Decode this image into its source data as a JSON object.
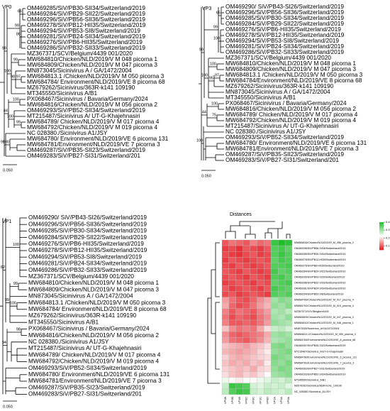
{
  "trees": [
    {
      "label": "VP0",
      "scale": "0.050",
      "leaves": [
        "OM469285/SiV/PB30-SII34/Switzerland/2019",
        "OM469284/SiV/PB29-SII22/Switzerland/2019",
        "OM469296/SiV/PB56-SII36/Switzerland/2019",
        "OM469278/SiV/PB12-HII35/Switzerland/2019",
        "OM469294/SiV/PB53-SI8/Switzerland/2019",
        "OM469281/SiV/PB24-SII34/Switzerland/2019",
        "OM469276/SiV/PB6-HII35/Switzerland/2019",
        "OM469286/SiV/PB32-SII33/Switzerland/2019",
        "MZ367371/SCV/Belgium/4439 001/2020",
        "MW684810/Chicken/NLD/2019/V M 048 picorna 1",
        "MW684809/Chicken/NLD/2019/V M 047 picorna 3",
        "MN873045/Sicinivirus A / GA/1472/2004",
        "MW684813.1 /Chicken/NLD/2019/V M 050 picorna 3",
        "MW684784/ Environment/NLD/2019/VE 8 picorna 68",
        "MZ679262/Sicinivirus/363R-k141 109190",
        "MT345550/Sicinivirus A/B1",
        {
          "label": "PX068467/Sicinivirus / Bavaria/Germany/2024",
          "color": "#e8141c"
        },
        {
          "label": "MW684816/Chicken/NLD/2019/V M 056 picorna 2",
          "color": "#1a2ee0"
        },
        "OM469293/SiV/PB52-SII34/Switzerland/2019",
        "MT215487/Sicinivirus A/ UT-G-Khajehnasiri",
        "MW684789/ Chicken/NLD/2019/V M 017 picorna 4",
        "MW684792/Chicken/NLD/2019/V M 019 picorna 4",
        "NC 028380./Sicinivirus A1/JSY",
        "MW684780/ Environment/NLD/2019/VE 6 picorna 131",
        "MW684781/Environment/NLD/2019/VE 7 picorna 3",
        "OM469287/SiV/PB35-SII23/Switzerland/2019",
        "OM469283/SiV/PB27-SI31/Switzerland/201"
      ],
      "bootstrap": [
        "99",
        "99",
        "66",
        "86",
        "100",
        "99",
        "98",
        "97",
        "100",
        "44",
        "100",
        "99",
        "99",
        "100"
      ]
    },
    {
      "label": "VP3",
      "scale": "0.050",
      "leaves": [
        "OM469290/ SiV/PB43-SI26/Switzerland/2019",
        "OM469296/SiV/PB56-SII36/Switzerland/2019",
        "OM469285/SiV/PB30-SII34/Switzerland/2019",
        "OM469284/SiV/PB29-SII22/Switzerland/2019",
        "OM469276/SiV/PB6-HII35/Switzerland/2019",
        "OM469278/SiV/PB12-HII35/Switzerland/2019",
        "OM469294/SiV/PB53-SI8/Switzerland/2019",
        "OM469281/SiV/PB24-SII34/Switzerland/2019",
        "OM469286/SiV/PB32-SII33/Switzerland/2019",
        "MZ367371/SCV/Belgium/4439 001/2020",
        "MW684810/Chicken/NLD/2019/V M 048 picorna 1",
        "MW684809/Chicken/NLD/2019/V M 047 picorna 3",
        "MW684813.1 /Chicken/NLD/2019/V M 050 picorna 3",
        "MW684784/Environment/NLD/2019/VE 8 picorna 68",
        "MZ679262/Sicinivirus/363R-k141 109190",
        "MN873045/Sicinivirus A / GA/1472/2004",
        "MT345550/Sicinivirus A/B1",
        {
          "label": "PX068467/Sicinivirus / Bavaria/Germany/2024",
          "color": "#e8141c"
        },
        {
          "label": "MW684816/Chicken/NLD/2019/V M 056 picorna 2",
          "color": "#1a2ee0"
        },
        "MW684789/ Chicken/NLD/2019/V M 017 picorna 4",
        "MW684792/Chicken/NLD/2019/V M 019 picorna 4",
        "MT215487/Sicinivirus A/ UT-G-Khajehnasiri",
        "NC 028380./Sicinivirus A1/JSY",
        "OM469293/SiV/PB52-SII34/Switzerland/2019",
        "MW684780/ Environment/NLD/2019/VE 6 picorna 131",
        "MW684781/Environment/NLD/2019/VE 7 picorna 3",
        "OM469287/SiV/PB35-SII23/Switzerland/2019",
        "OM469283/SiV/PB27-SI31/Switzerland/201"
      ],
      "bootstrap": [
        "99",
        "99",
        "65",
        "100",
        "100",
        "100",
        "95",
        "97",
        "44",
        "100",
        "75",
        "100"
      ]
    },
    {
      "label": "VP1",
      "scale": "0.050",
      "leaves": [
        "OM469290/ SiV/PB43-SI26/Switzerland/2019",
        "OM469296/SiV/PB56-SII36/Switzerland/2019",
        "OM469285/SiV/PB30-SII34/Switzerland/2019",
        "OM469284/SiV/PB29-SII22/Switzerland/2019",
        "OM469276/SiV/PB6-HII35/Switzerland/2019",
        "OM469278/SiV/PB12-HII35/Switzerland/2019",
        "OM469294/SiV/PB53-SI8/Switzerland/2019",
        "OM469281/SiV/PB24-SII34/Switzerland/2019",
        "OM469286/SiV/PB32-SII33/Switzerland/2019",
        "MZ367371/SCV/Belgium/4439 001/2020",
        "MW684810/Chicken/NLD/2019/V M 048 picorna 1",
        "MW684809/Chicken/NLD/2019/V M 047 picorna 3",
        "MN873045/Sicinivirus A / GA/1472/2004",
        "MW684813.1 /Chicken/NLD/2019/V M 050 picorna 3",
        "MW684784/ Environment/NLD/2019/VE 8 picorna 68",
        "MZ679262/Sicinivirus/363R-k141 109190",
        "MT345550/Sicinivirus A/B1",
        {
          "label": "PX068467/Sicinivirus / Bavaria/Germany/2024",
          "color": "#e8141c"
        },
        {
          "label": "MW684816/Chicken/NLD/2019/V M 056 picorna 2",
          "color": "#1a2ee0"
        },
        "NC 028380./Sicinivirus A1/JSY",
        "MT215487/Sicinivirus A/ UT-G-Khajehnasiri",
        "MW684789/ Chicken/NLD/2019/V M 017 picorna 4",
        "MW684792/Chicken/NLD/2019/V M 019 picorna 4",
        "OM469293/SiV/PB52-SII34/Switzerland/2019",
        "MW684780/ Environment/NLD/2019/VE 6 picorna 131",
        "MW684781/Environment/NLD/2019/VE 7 picorna 3",
        "OM469287/SiV/PB35-SI23/Switzerland/2019",
        "OM469283/SiV/PB27-SI31/Switzerland/201"
      ],
      "bootstrap": [
        "62",
        "100",
        "99",
        "99",
        "100",
        "94",
        "98"
      ]
    }
  ],
  "heatmap": {
    "title": "Distances",
    "rows": [
      "MW684816/Chicken/NLD/2019/V_M_056_picorna_2",
      "OM469296/SiV/PB56-SII36/Switzerland/2019",
      "OM469285/SiV/PB30-SII34/Switzerland/2019",
      "OM469278/SiV/PB12-HII35/Switzerland/2019",
      "OM469276/SiV/PB6-HII35/Switzerland/2019",
      "OM469284/SiV/PB29-SII22/Switzerland/2019",
      "OM469290/SiV/PB43-SI26/Switzerland/2019",
      "OM469286/SiV/PB32-SII33/Switzerland/2019",
      "OM469281/SiV/PB24-SII34/Switzerland/2019",
      "OM469294/SiV/PB53-SI8/Switzerland/2019",
      "MW684789/Chicken/NLD/2019/V_M_017_picorna_4",
      "MW684792/Chicken/NLD/2019/V_M_019_picorna_4",
      "MZ367371/SCV/Belgium/4439",
      "MW684809/Chicken/NLD/2019/V_M_047_picorna_3",
      "MW684810/Chicken/NLD/2019/V_M_048_picorna_1",
      "MN873045/Sicinivirus_A/GA/1472/2004",
      "MW684813.1/Chicken/NLD/2019/V_M_050_picorna_3",
      "MW684784/Environment/NLD/2019/VE_8_picorna_68",
      "OM469287/SiV/PB35-SII23/Switzerland/2019",
      "MT215487/Sicinivirus_A/UT-G-Khajehnasiri",
      "MW684780/Environment/NLD/2019/VE_6_picorna_131",
      "MW684781/Environment/NLD/2019/VE_7_picorna_3",
      "OM469283/SiV/PB27-SI31/Switzerland/2019",
      "OM469293/SiV/PB52-SII34/Switzerland/2019",
      "MT345550/Sicinivirus_A/B1",
      "MZ679262/Sicinivirus/363R-k141_109190",
      "NC_028380./Sicinivirus_A1/JSY"
    ],
    "columns": [
      "VP0B",
      "VP3B",
      "VP1B",
      "VP0C",
      "VP3C",
      "VP1C",
      "VP0D",
      "VP1A",
      "VP3A",
      "VP0A"
    ],
    "values": [
      [
        0.1,
        0.12,
        0.11,
        0.1,
        0.13,
        0.11,
        0.12,
        0.38,
        0.4,
        0.39
      ],
      [
        0.08,
        0.09,
        0.07,
        0.1,
        0.09,
        0.08,
        0.1,
        0.36,
        0.37,
        0.35
      ],
      [
        0.09,
        0.08,
        0.07,
        0.09,
        0.1,
        0.08,
        0.09,
        0.36,
        0.38,
        0.36
      ],
      [
        0.08,
        0.1,
        0.09,
        0.08,
        0.09,
        0.1,
        0.09,
        0.35,
        0.37,
        0.36
      ],
      [
        0.09,
        0.08,
        0.1,
        0.09,
        0.08,
        0.09,
        0.1,
        0.36,
        0.36,
        0.37
      ],
      [
        0.1,
        0.09,
        0.08,
        0.1,
        0.09,
        0.08,
        0.09,
        0.37,
        0.35,
        0.36
      ],
      [
        0.09,
        0.1,
        0.09,
        0.08,
        0.1,
        0.09,
        0.08,
        0.36,
        0.37,
        0.35
      ],
      [
        0.08,
        0.09,
        0.1,
        0.09,
        0.08,
        0.1,
        0.09,
        0.35,
        0.36,
        0.37
      ],
      [
        0.1,
        0.08,
        0.09,
        0.1,
        0.09,
        0.08,
        0.1,
        0.37,
        0.36,
        0.35
      ],
      [
        0.09,
        0.1,
        0.08,
        0.09,
        0.1,
        0.09,
        0.08,
        0.36,
        0.35,
        0.36
      ],
      [
        0.15,
        0.12,
        0.1,
        0.09,
        0.11,
        0.14,
        0.16,
        0.3,
        0.32,
        0.31
      ],
      [
        0.16,
        0.11,
        0.09,
        0.1,
        0.12,
        0.15,
        0.17,
        0.31,
        0.3,
        0.32
      ],
      [
        0.13,
        0.1,
        0.12,
        0.11,
        0.1,
        0.13,
        0.15,
        0.29,
        0.3,
        0.28
      ],
      [
        0.12,
        0.09,
        0.11,
        0.1,
        0.09,
        0.12,
        0.14,
        0.3,
        0.29,
        0.31
      ],
      [
        0.13,
        0.1,
        0.1,
        0.11,
        0.1,
        0.12,
        0.15,
        0.31,
        0.3,
        0.29
      ],
      [
        0.18,
        0.14,
        0.12,
        0.13,
        0.12,
        0.16,
        0.2,
        0.27,
        0.28,
        0.26
      ],
      [
        0.14,
        0.11,
        0.1,
        0.11,
        0.12,
        0.13,
        0.16,
        0.3,
        0.31,
        0.3
      ],
      [
        0.15,
        0.12,
        0.11,
        0.1,
        0.12,
        0.14,
        0.17,
        0.29,
        0.3,
        0.31
      ],
      [
        0.18,
        0.17,
        0.16,
        0.15,
        0.17,
        0.18,
        0.2,
        0.32,
        0.33,
        0.31
      ],
      [
        0.17,
        0.16,
        0.15,
        0.16,
        0.17,
        0.19,
        0.21,
        0.31,
        0.32,
        0.33
      ],
      [
        0.19,
        0.17,
        0.16,
        0.17,
        0.18,
        0.19,
        0.2,
        0.33,
        0.32,
        0.31
      ],
      [
        0.18,
        0.16,
        0.17,
        0.16,
        0.18,
        0.17,
        0.21,
        0.32,
        0.31,
        0.33
      ],
      [
        0.19,
        0.18,
        0.17,
        0.18,
        0.16,
        0.19,
        0.2,
        0.31,
        0.33,
        0.32
      ],
      [
        0.2,
        0.18,
        0.17,
        0.19,
        0.18,
        0.2,
        0.22,
        0.3,
        0.31,
        0.32
      ],
      [
        0.24,
        0.22,
        0.21,
        0.23,
        0.22,
        0.24,
        0.25,
        0.27,
        0.26,
        0.28
      ],
      [
        0.27,
        0.38,
        0.37,
        0.36,
        0.26,
        0.25,
        0.27,
        0.26,
        0.27,
        0.25
      ],
      [
        0.28,
        0.36,
        0.38,
        0.37,
        0.27,
        0.26,
        0.28,
        0.27,
        0.26,
        0.28
      ]
    ],
    "clim": [
      0.05,
      0.4
    ],
    "cticks": [
      0.4,
      0.3,
      0.2,
      0.1
    ],
    "low_color": "#e8141c",
    "mid_color": "#ffffff",
    "high_color": "#1fbf2a"
  }
}
